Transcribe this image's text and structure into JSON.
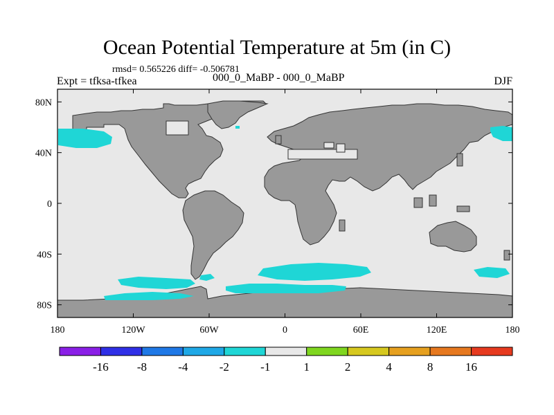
{
  "title": "Ocean Potential Temperature at 5m (in C)",
  "stats_text": "rmsd= 0.565226 diff= -0.506781",
  "period_text": "000_0_MaBP - 000_0_MaBP",
  "experiment_text": "Expt = tfksa-tfkea",
  "season": "DJF",
  "map": {
    "projection": "cylindrical-equidistant",
    "lon_range": [
      -180,
      180
    ],
    "lat_range": [
      -90,
      90
    ],
    "land_color": "#999999",
    "ocean_color": "#e8e8e8",
    "anomaly_color": "#1fd6d6"
  },
  "axes": {
    "y_ticks": [
      {
        "label": "80N",
        "lat": 80
      },
      {
        "label": "40N",
        "lat": 40
      },
      {
        "label": "0",
        "lat": 0
      },
      {
        "label": "40S",
        "lat": -40
      },
      {
        "label": "80S",
        "lat": -80
      }
    ],
    "x_ticks": [
      {
        "label": "180",
        "lon": -180
      },
      {
        "label": "120W",
        "lon": -120
      },
      {
        "label": "60W",
        "lon": -60
      },
      {
        "label": "0",
        "lon": 0
      },
      {
        "label": "60E",
        "lon": 60
      },
      {
        "label": "120E",
        "lon": 120
      },
      {
        "label": "180",
        "lon": 180
      }
    ]
  },
  "colorbar": {
    "colors": [
      "#8a1fe6",
      "#2f2fe6",
      "#1f78e6",
      "#1fa8e6",
      "#1fd6d6",
      "#e8e8e8",
      "#7fd61f",
      "#d6c81f",
      "#e6a01f",
      "#e6781f",
      "#e63a1f"
    ],
    "boundary_labels": [
      "-16",
      "-8",
      "-4",
      "-2",
      "-1",
      "1",
      "2",
      "4",
      "8",
      "16"
    ]
  }
}
